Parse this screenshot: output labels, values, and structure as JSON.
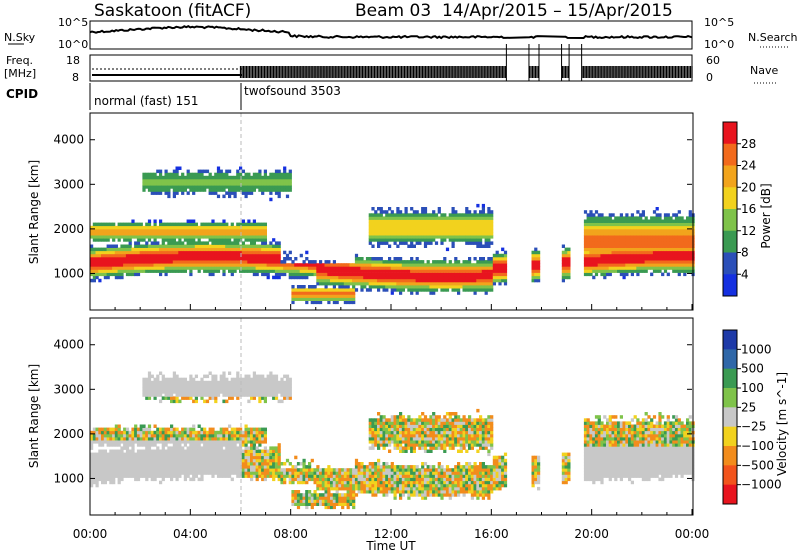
{
  "header": {
    "station": "Saskatoon (fitACF)",
    "beam": "Beam 03",
    "date_range": "14/Apr/2015 – 15/Apr/2015"
  },
  "strip": {
    "nsky_label": "N.Sky",
    "nsky_top": "10^5",
    "nsky_bottom": "10^0",
    "nsearch_label": "N.Search",
    "nsearch_top": "10^5",
    "nsearch_bottom": "10^0",
    "freq_label": "Freq.",
    "freq_unit": "[MHz]",
    "freq_top": "18",
    "freq_bottom": "8",
    "nave_label": "Nave",
    "nave_top": "60",
    "nave_bottom": "0",
    "cpid_label": "CPID",
    "modes": [
      {
        "name": "normal (fast)",
        "id": "151"
      },
      {
        "name": "twofsound",
        "id": "3503"
      }
    ]
  },
  "colors": {
    "red": "#e8141e",
    "orange": "#f28c1c",
    "yellow": "#f2d21e",
    "lightgreen": "#7fc34a",
    "green": "#3a9a52",
    "blue": "#2b4fb8",
    "gray": "#c8c8c8"
  },
  "chart_data": [
    {
      "type": "heatmap",
      "name": "power",
      "ylabel": "Slant Range [km]",
      "xlabel": "Time UT",
      "ylim": [
        180,
        4600
      ],
      "yticks": [
        "1000",
        "2000",
        "3000",
        "4000"
      ],
      "xticks": [
        "00:00",
        "04:00",
        "08:00",
        "12:00",
        "16:00",
        "20:00",
        "00:00"
      ],
      "colorbar": {
        "label": "Power [dB]",
        "ticks": [
          "28",
          "24",
          "20",
          "16",
          "12",
          "8",
          "4"
        ],
        "colors": [
          "#e8141e",
          "#f26a1c",
          "#f2a41c",
          "#f2d21e",
          "#7fc34a",
          "#3a9a52",
          "#2b4fb8",
          "#1530e0"
        ]
      }
    },
    {
      "type": "heatmap",
      "name": "velocity",
      "ylabel": "Slant Range [km]",
      "xlabel": "Time UT",
      "ylim": [
        180,
        4600
      ],
      "yticks": [
        "1000",
        "2000",
        "3000",
        "4000"
      ],
      "xticks": [
        "00:00",
        "04:00",
        "08:00",
        "12:00",
        "16:00",
        "20:00",
        "00:00"
      ],
      "colorbar": {
        "label": "Velocity [m s^-1]",
        "ticks": [
          "1000",
          "500",
          "100",
          "25",
          "−25",
          "−100",
          "−500",
          "−1000"
        ],
        "colors": [
          "#1e3aa8",
          "#2f67a8",
          "#3a9a52",
          "#7fc34a",
          "#c8c8c8",
          "#f2d21e",
          "#f28c1c",
          "#f2541c",
          "#e8141e"
        ]
      }
    }
  ],
  "axis": {
    "time_label": "Time UT"
  }
}
